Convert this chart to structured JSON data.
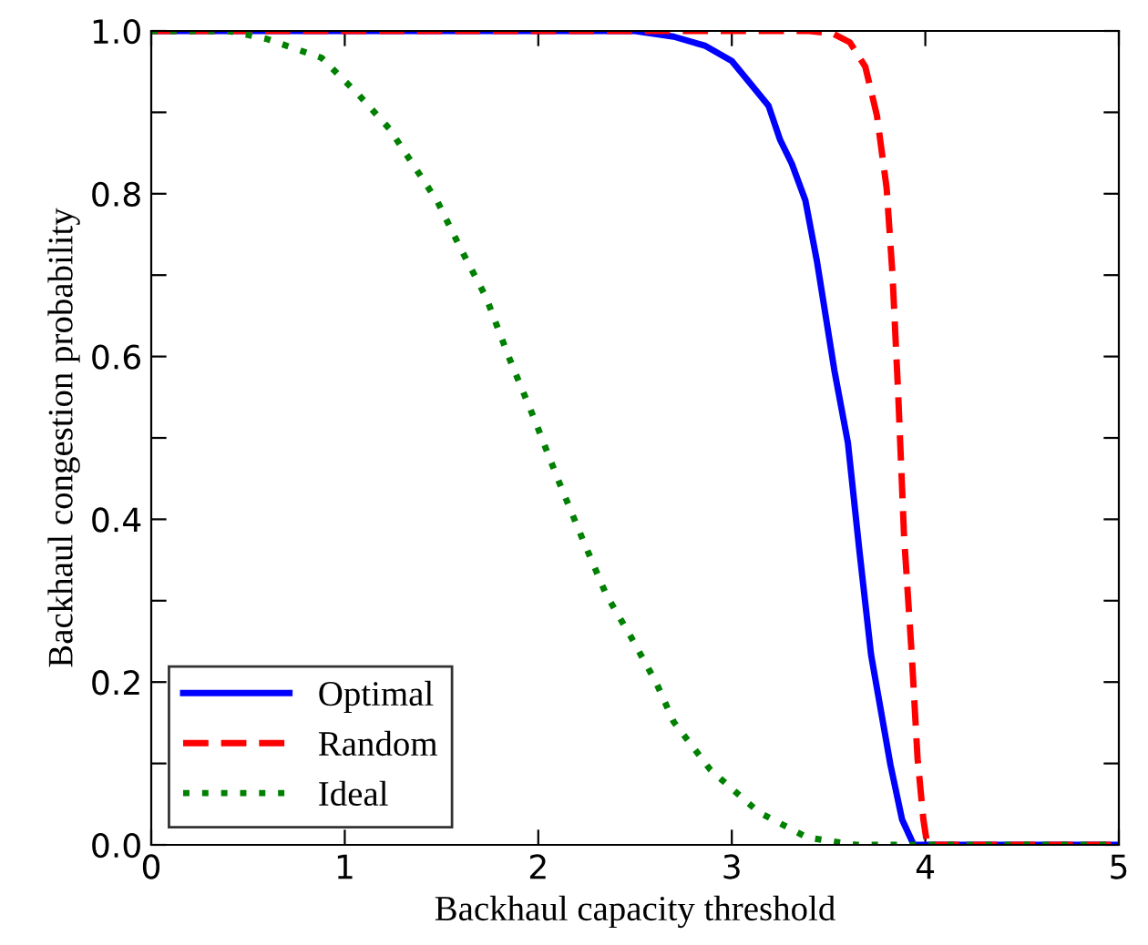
{
  "chart_data": {
    "type": "line",
    "xlabel": "Backhaul capacity threshold",
    "ylabel": "Backhaul congestion probability",
    "xlim": [
      0,
      5
    ],
    "ylim": [
      0,
      1
    ],
    "xticks": [
      0,
      1,
      2,
      3,
      4,
      5
    ],
    "yticks": [
      {
        "value": 0,
        "label": "0.0"
      },
      {
        "value": 0.1,
        "label": null
      },
      {
        "value": 0.2,
        "label": "0.2"
      },
      {
        "value": 0.3,
        "label": null
      },
      {
        "value": 0.4,
        "label": "0.4"
      },
      {
        "value": 0.5,
        "label": null
      },
      {
        "value": 0.6,
        "label": "0.6"
      },
      {
        "value": 0.7,
        "label": null
      },
      {
        "value": 0.8,
        "label": "0.8"
      },
      {
        "value": 0.9,
        "label": null
      },
      {
        "value": 1,
        "label": "1.0"
      }
    ],
    "grid": false,
    "legend": "bottom left",
    "series": [
      {
        "name": "Optimal",
        "color": "#0000ff",
        "line_style": "solid",
        "x": [
          0,
          2.5,
          2.7,
          2.86,
          3.0,
          3.09,
          3.19,
          3.25,
          3.31,
          3.38,
          3.44,
          3.53,
          3.6,
          3.66,
          3.72,
          3.82,
          3.88,
          3.94,
          5
        ],
        "values": [
          1,
          1,
          0.993,
          0.982,
          0.963,
          0.937,
          0.908,
          0.866,
          0.837,
          0.792,
          0.717,
          0.583,
          0.494,
          0.36,
          0.233,
          0.098,
          0.031,
          0,
          0
        ]
      },
      {
        "name": "Random",
        "color": "#ff0000",
        "line_style": "dashed",
        "x": [
          0,
          3.4,
          3.52,
          3.61,
          3.69,
          3.75,
          3.8,
          3.83,
          3.86,
          3.89,
          3.93,
          3.96,
          3.99,
          4.01,
          5
        ],
        "values": [
          1,
          1,
          0.997,
          0.986,
          0.956,
          0.896,
          0.807,
          0.702,
          0.553,
          0.38,
          0.233,
          0.106,
          0.031,
          0,
          0
        ]
      },
      {
        "name": "Ideal",
        "color": "#008000",
        "line_style": "dotted",
        "x": [
          0,
          0.4,
          0.6,
          0.88,
          1.07,
          1.23,
          1.35,
          1.48,
          1.6,
          1.73,
          1.85,
          1.98,
          2.1,
          2.23,
          2.35,
          2.48,
          2.61,
          2.7,
          2.89,
          3.14,
          3.39,
          3.64,
          5
        ],
        "values": [
          1,
          1,
          0.99,
          0.967,
          0.922,
          0.88,
          0.837,
          0.79,
          0.732,
          0.673,
          0.598,
          0.523,
          0.45,
          0.375,
          0.308,
          0.255,
          0.199,
          0.151,
          0.092,
          0.04,
          0.009,
          0,
          0
        ]
      }
    ]
  }
}
